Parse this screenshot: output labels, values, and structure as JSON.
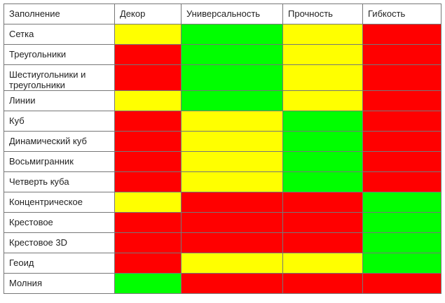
{
  "table": {
    "header": [
      "Заполнение",
      "Декор",
      "Универсальность",
      "Прочность",
      "Гибкость"
    ],
    "rows": [
      {
        "label": "Сетка",
        "colors": [
          "#ffff00",
          "#00ff00",
          "#ffff00",
          "#ff0000"
        ]
      },
      {
        "label": "Треугольники",
        "colors": [
          "#ff0000",
          "#00ff00",
          "#ffff00",
          "#ff0000"
        ]
      },
      {
        "label": "Шестиугольники и треугольники",
        "colors": [
          "#ff0000",
          "#00ff00",
          "#ffff00",
          "#ff0000"
        ]
      },
      {
        "label": "Линии",
        "colors": [
          "#ffff00",
          "#00ff00",
          "#ffff00",
          "#ff0000"
        ]
      },
      {
        "label": "Куб",
        "colors": [
          "#ff0000",
          "#ffff00",
          "#00ff00",
          "#ff0000"
        ]
      },
      {
        "label": "Динамический куб",
        "colors": [
          "#ff0000",
          "#ffff00",
          "#00ff00",
          "#ff0000"
        ]
      },
      {
        "label": "Восьмигранник",
        "colors": [
          "#ff0000",
          "#ffff00",
          "#00ff00",
          "#ff0000"
        ]
      },
      {
        "label": "Четверть куба",
        "colors": [
          "#ff0000",
          "#ffff00",
          "#00ff00",
          "#ff0000"
        ]
      },
      {
        "label": "Концентрическое",
        "colors": [
          "#ffff00",
          "#ff0000",
          "#ff0000",
          "#00ff00"
        ]
      },
      {
        "label": "Крестовое",
        "colors": [
          "#ff0000",
          "#ff0000",
          "#ff0000",
          "#00ff00"
        ]
      },
      {
        "label": "Крестовое 3D",
        "colors": [
          "#ff0000",
          "#ff0000",
          "#ff0000",
          "#00ff00"
        ]
      },
      {
        "label": "Геоид",
        "colors": [
          "#ff0000",
          "#ffff00",
          "#ffff00",
          "#00ff00"
        ]
      },
      {
        "label": "Молния",
        "colors": [
          "#00ff00",
          "#ff0000",
          "#ff0000",
          "#ff0000"
        ]
      }
    ]
  }
}
